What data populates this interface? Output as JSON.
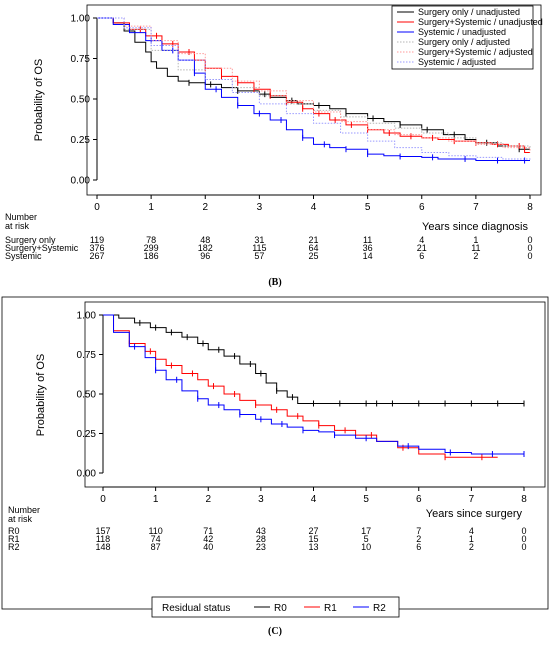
{
  "chart_data": [
    {
      "type": "line",
      "panel_label": "(B)",
      "ylabel": "Probability of OS",
      "xlabel": "Years since diagnosis",
      "xlim": [
        0,
        8
      ],
      "ylim": [
        0,
        1
      ],
      "x_ticks": [
        "0",
        "1",
        "2",
        "3",
        "4",
        "5",
        "6",
        "7",
        "8"
      ],
      "y_ticks": [
        "0.00",
        "0.25",
        "0.50",
        "0.75",
        "1.00"
      ],
      "legend_position": "top-right",
      "series": [
        {
          "name": "Surgery only / unadjusted",
          "color": "#000000",
          "style": "step",
          "x": [
            0,
            0.3,
            0.5,
            0.7,
            0.9,
            1.0,
            1.1,
            1.3,
            1.5,
            1.7,
            2.0,
            2.3,
            2.6,
            3.0,
            3.2,
            3.5,
            3.7,
            4.0,
            4.3,
            4.6,
            5.0,
            5.3,
            5.6,
            6.0,
            6.4,
            6.8,
            7.0,
            7.4,
            7.8,
            8.0
          ],
          "y": [
            1.0,
            0.97,
            0.92,
            0.85,
            0.79,
            0.73,
            0.69,
            0.64,
            0.61,
            0.6,
            0.59,
            0.57,
            0.55,
            0.53,
            0.51,
            0.49,
            0.47,
            0.46,
            0.44,
            0.41,
            0.38,
            0.36,
            0.34,
            0.31,
            0.28,
            0.25,
            0.23,
            0.21,
            0.19,
            0.19
          ],
          "censor_x": [
            1.7,
            2.1,
            2.6,
            3.1,
            3.6,
            4.1,
            4.6,
            5.1,
            5.6,
            6.1,
            6.6,
            7.2,
            7.8
          ]
        },
        {
          "name": "Surgery+Systemic / unadjusted",
          "color": "#ff0000",
          "style": "step",
          "x": [
            0,
            0.3,
            0.6,
            0.9,
            1.2,
            1.5,
            1.8,
            2.0,
            2.3,
            2.6,
            2.9,
            3.2,
            3.5,
            3.8,
            4.0,
            4.3,
            4.6,
            5.0,
            5.3,
            5.6,
            6.0,
            6.3,
            6.6,
            7.0,
            7.3,
            7.6,
            7.9,
            8.0
          ],
          "y": [
            1.0,
            0.97,
            0.93,
            0.89,
            0.84,
            0.79,
            0.74,
            0.69,
            0.64,
            0.6,
            0.56,
            0.52,
            0.48,
            0.44,
            0.41,
            0.37,
            0.34,
            0.31,
            0.29,
            0.27,
            0.26,
            0.25,
            0.24,
            0.23,
            0.22,
            0.21,
            0.17,
            0.17
          ],
          "censor_x": [
            0.8,
            1.1,
            1.4,
            1.7,
            2.0,
            2.3,
            2.6,
            2.9,
            3.2,
            3.5,
            3.8,
            4.1,
            4.4,
            4.7,
            5.0,
            5.4,
            5.8,
            6.2,
            6.6,
            7.0,
            7.4,
            7.8
          ]
        },
        {
          "name": "Systemic / unadjusted",
          "color": "#0000ff",
          "style": "step",
          "x": [
            0,
            0.3,
            0.6,
            0.9,
            1.2,
            1.5,
            1.8,
            2.0,
            2.3,
            2.6,
            2.9,
            3.2,
            3.5,
            3.8,
            4.0,
            4.3,
            4.6,
            5.0,
            5.3,
            5.6,
            6.0,
            6.3,
            6.6,
            7.0,
            7.5,
            8.0
          ],
          "y": [
            1.0,
            0.96,
            0.91,
            0.86,
            0.8,
            0.74,
            0.66,
            0.56,
            0.51,
            0.46,
            0.41,
            0.37,
            0.31,
            0.26,
            0.22,
            0.2,
            0.19,
            0.16,
            0.15,
            0.145,
            0.14,
            0.13,
            0.13,
            0.12,
            0.12,
            0.12
          ],
          "censor_x": [
            1.0,
            1.4,
            1.8,
            2.2,
            2.6,
            3.0,
            3.4,
            3.8,
            4.2,
            4.6,
            5.0,
            5.6,
            6.2,
            6.8,
            7.4,
            7.9
          ]
        },
        {
          "name": "Surgery only / adjusted",
          "color": "#b4b4b4",
          "style": "dotted-step",
          "x": [
            0,
            0.5,
            1.0,
            1.5,
            2.0,
            2.5,
            3.0,
            3.5,
            4.0,
            4.5,
            5.0,
            5.5,
            6.0,
            6.5,
            7.0,
            7.5,
            8.0
          ],
          "y": [
            1.0,
            0.93,
            0.8,
            0.68,
            0.62,
            0.57,
            0.52,
            0.47,
            0.43,
            0.39,
            0.35,
            0.32,
            0.29,
            0.26,
            0.23,
            0.21,
            0.19
          ]
        },
        {
          "name": "Surgery+Systemic / adjusted",
          "color": "#ff9a9a",
          "style": "dotted-step",
          "x": [
            0,
            0.5,
            1.0,
            1.5,
            2.0,
            2.5,
            3.0,
            3.5,
            4.0,
            4.5,
            5.0,
            5.5,
            6.0,
            6.5,
            7.0,
            7.5,
            8.0
          ],
          "y": [
            1.0,
            0.95,
            0.86,
            0.78,
            0.69,
            0.61,
            0.55,
            0.49,
            0.42,
            0.36,
            0.31,
            0.28,
            0.26,
            0.24,
            0.22,
            0.2,
            0.17
          ]
        },
        {
          "name": "Systemic / adjusted",
          "color": "#9a9aff",
          "style": "dotted-step",
          "x": [
            0,
            0.5,
            1.0,
            1.5,
            2.0,
            2.5,
            3.0,
            3.5,
            4.0,
            4.5,
            5.0,
            5.5,
            6.0,
            6.5,
            7.0,
            7.5,
            8.0
          ],
          "y": [
            1.0,
            0.94,
            0.83,
            0.74,
            0.62,
            0.54,
            0.47,
            0.41,
            0.35,
            0.29,
            0.24,
            0.2,
            0.17,
            0.15,
            0.14,
            0.13,
            0.12
          ]
        }
      ],
      "risk_table": {
        "title_line1": "Number",
        "title_line2": "at risk",
        "columns": [
          "0",
          "1",
          "2",
          "3",
          "4",
          "5",
          "6",
          "7",
          "8"
        ],
        "rows": [
          {
            "label": "Surgery only",
            "values": [
              "119",
              "78",
              "48",
              "31",
              "21",
              "11",
              "4",
              "1",
              "0"
            ]
          },
          {
            "label": "Surgery+Systemic",
            "values": [
              "376",
              "299",
              "182",
              "115",
              "64",
              "36",
              "21",
              "11",
              "0"
            ]
          },
          {
            "label": "Systemic",
            "values": [
              "267",
              "186",
              "96",
              "57",
              "25",
              "14",
              "6",
              "2",
              "0"
            ]
          }
        ]
      }
    },
    {
      "type": "line",
      "panel_label": "(C)",
      "ylabel": "Probability of OS",
      "xlabel": "Years since surgery",
      "xlim": [
        0,
        8
      ],
      "ylim": [
        0,
        1
      ],
      "x_ticks": [
        "0",
        "1",
        "2",
        "3",
        "4",
        "5",
        "6",
        "7",
        "8"
      ],
      "y_ticks": [
        "0.00",
        "0.25",
        "0.50",
        "0.75",
        "1.00"
      ],
      "legend_title": "Residual status",
      "legend_position": "bottom",
      "series": [
        {
          "name": "R0",
          "color": "#000000",
          "style": "step",
          "x": [
            0,
            0.3,
            0.6,
            0.9,
            1.2,
            1.5,
            1.8,
            2.0,
            2.3,
            2.6,
            2.9,
            3.1,
            3.3,
            3.5,
            3.7,
            8.0
          ],
          "y": [
            1.0,
            0.98,
            0.95,
            0.92,
            0.89,
            0.86,
            0.82,
            0.78,
            0.74,
            0.69,
            0.63,
            0.57,
            0.52,
            0.48,
            0.44,
            0.44
          ],
          "censor_x": [
            0.7,
            1.0,
            1.3,
            1.6,
            1.9,
            2.2,
            2.5,
            2.8,
            3.0,
            3.3,
            3.6,
            4.0,
            4.5,
            5.0,
            5.2,
            5.5,
            6.0,
            6.5,
            7.0,
            7.5,
            8.0
          ]
        },
        {
          "name": "R1",
          "color": "#ff0000",
          "style": "step",
          "x": [
            0,
            0.2,
            0.5,
            0.8,
            1.0,
            1.2,
            1.5,
            1.8,
            2.0,
            2.3,
            2.6,
            2.9,
            3.2,
            3.5,
            3.8,
            4.1,
            4.4,
            4.8,
            5.2,
            5.6,
            6.0,
            6.5,
            7.0,
            7.5
          ],
          "y": [
            1.0,
            0.9,
            0.82,
            0.77,
            0.72,
            0.68,
            0.63,
            0.59,
            0.55,
            0.5,
            0.46,
            0.43,
            0.4,
            0.36,
            0.33,
            0.3,
            0.27,
            0.24,
            0.2,
            0.16,
            0.12,
            0.1,
            0.1,
            0.1
          ],
          "censor_x": [
            0.5,
            0.9,
            1.3,
            1.7,
            2.1,
            2.5,
            2.9,
            3.3,
            3.7,
            4.1,
            4.6,
            5.1,
            5.7,
            6.5,
            7.2
          ]
        },
        {
          "name": "R2",
          "color": "#0000ff",
          "style": "step",
          "x": [
            0,
            0.2,
            0.5,
            0.8,
            1.0,
            1.2,
            1.5,
            1.8,
            2.0,
            2.3,
            2.6,
            2.9,
            3.2,
            3.5,
            3.8,
            4.1,
            4.4,
            4.8,
            5.2,
            5.6,
            6.0,
            6.5,
            7.0,
            8.0
          ],
          "y": [
            1.0,
            0.89,
            0.8,
            0.73,
            0.65,
            0.59,
            0.52,
            0.47,
            0.43,
            0.4,
            0.37,
            0.34,
            0.31,
            0.29,
            0.27,
            0.26,
            0.24,
            0.22,
            0.2,
            0.17,
            0.15,
            0.13,
            0.12,
            0.12
          ],
          "censor_x": [
            0.6,
            1.0,
            1.4,
            1.8,
            2.2,
            2.6,
            3.0,
            3.4,
            3.8,
            4.4,
            5.0,
            5.8,
            6.6,
            7.4,
            8.0
          ]
        }
      ],
      "risk_table": {
        "title_line1": "Number",
        "title_line2": "at risk",
        "columns": [
          "0",
          "1",
          "2",
          "3",
          "4",
          "5",
          "6",
          "7",
          "8"
        ],
        "rows": [
          {
            "label": "R0",
            "values": [
              "157",
              "110",
              "71",
              "43",
              "27",
              "17",
              "7",
              "4",
              "0"
            ]
          },
          {
            "label": "R1",
            "values": [
              "118",
              "74",
              "42",
              "28",
              "15",
              "5",
              "2",
              "1",
              "0"
            ]
          },
          {
            "label": "R2",
            "values": [
              "148",
              "87",
              "40",
              "23",
              "13",
              "10",
              "6",
              "2",
              "0"
            ]
          }
        ]
      }
    }
  ]
}
